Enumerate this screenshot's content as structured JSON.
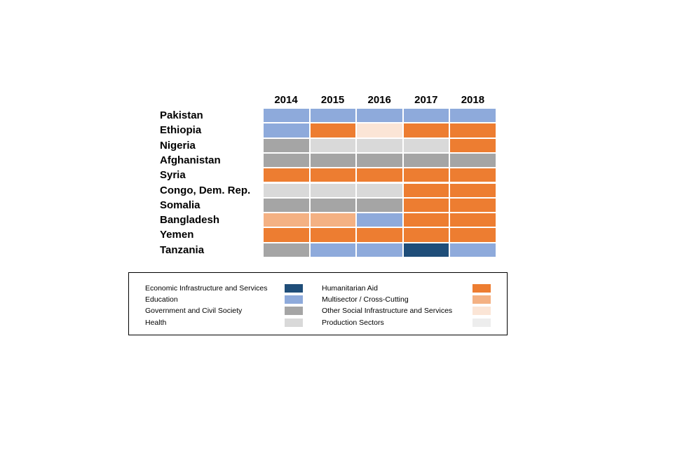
{
  "chart_data": {
    "type": "heatmap",
    "years": [
      "2014",
      "2015",
      "2016",
      "2017",
      "2018"
    ],
    "countries": [
      "Pakistan",
      "Ethiopia",
      "Nigeria",
      "Afghanistan",
      "Syria",
      "Congo, Dem. Rep.",
      "Somalia",
      "Bangladesh",
      "Yemen",
      "Tanzania"
    ],
    "cells": [
      [
        "Education",
        "Education",
        "Education",
        "Education",
        "Education"
      ],
      [
        "Education",
        "Humanitarian Aid",
        "Other Social Infrastructure and Services",
        "Humanitarian Aid",
        "Humanitarian Aid"
      ],
      [
        "Government and Civil Society",
        "Health",
        "Health",
        "Health",
        "Humanitarian Aid"
      ],
      [
        "Government and Civil Society",
        "Government and Civil Society",
        "Government and Civil Society",
        "Government and Civil Society",
        "Government and Civil Society"
      ],
      [
        "Humanitarian Aid",
        "Humanitarian Aid",
        "Humanitarian Aid",
        "Humanitarian Aid",
        "Humanitarian Aid"
      ],
      [
        "Health",
        "Health",
        "Health",
        "Humanitarian Aid",
        "Humanitarian Aid"
      ],
      [
        "Government and Civil Society",
        "Government and Civil Society",
        "Government and Civil Society",
        "Humanitarian Aid",
        "Humanitarian Aid"
      ],
      [
        "Multisector / Cross-Cutting",
        "Multisector / Cross-Cutting",
        "Education",
        "Humanitarian Aid",
        "Humanitarian Aid"
      ],
      [
        "Humanitarian Aid",
        "Humanitarian Aid",
        "Humanitarian Aid",
        "Humanitarian Aid",
        "Humanitarian Aid"
      ],
      [
        "Government and Civil Society",
        "Education",
        "Education",
        "Economic Infrastructure and Services",
        "Education"
      ]
    ],
    "legend": [
      {
        "label": "Economic Infrastructure and Services",
        "color": "#1f4e79"
      },
      {
        "label": "Education",
        "color": "#8eaadb"
      },
      {
        "label": "Government and Civil Society",
        "color": "#a5a5a5"
      },
      {
        "label": "Health",
        "color": "#d9d9d9"
      },
      {
        "label": "Humanitarian Aid",
        "color": "#ed7d31"
      },
      {
        "label": "Multisector / Cross-Cutting",
        "color": "#f4b183"
      },
      {
        "label": "Other Social Infrastructure and Services",
        "color": "#fbe5d6"
      },
      {
        "label": "Production Sectors",
        "color": "#ededed"
      }
    ]
  }
}
